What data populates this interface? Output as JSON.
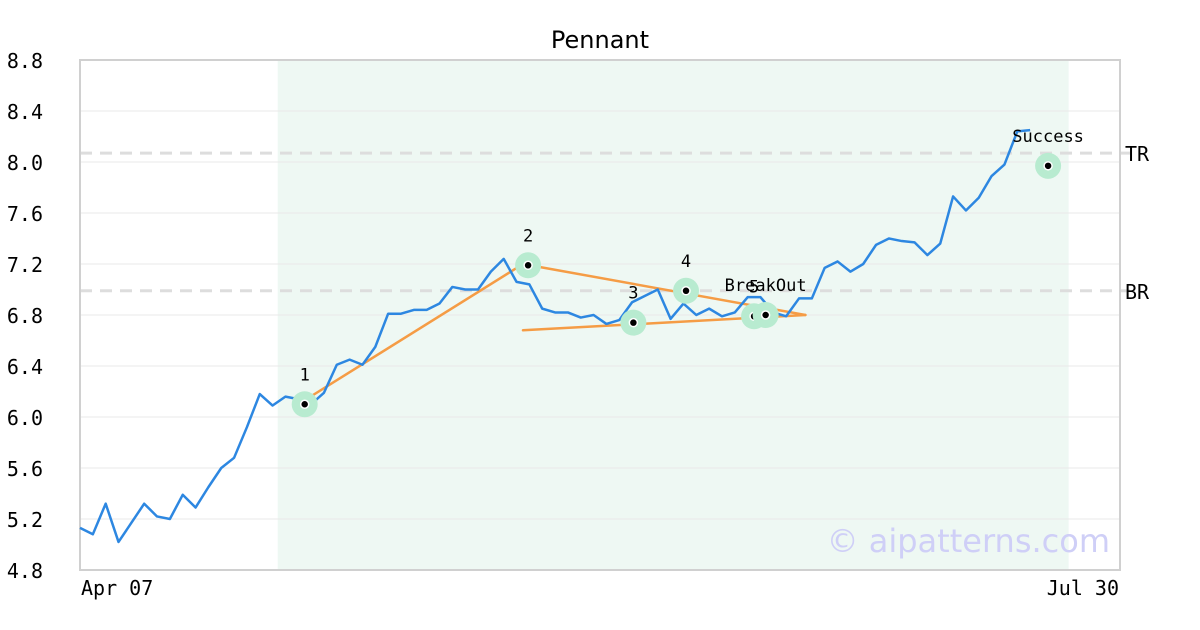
{
  "chart_data": {
    "type": "line",
    "title": "Pennant",
    "xlabel": "",
    "ylabel": "",
    "x_tick_labels": [
      "Apr 07",
      "Jul 30"
    ],
    "x_range": [
      0,
      81
    ],
    "ylim": [
      4.8,
      8.8
    ],
    "y_ticks": [
      "4.8",
      "5.2",
      "5.6",
      "6.0",
      "6.4",
      "6.8",
      "7.2",
      "7.6",
      "8.0",
      "8.4",
      "8.8"
    ],
    "grid": true,
    "pattern_zone_x": [
      15.4,
      77.0
    ],
    "series": [
      {
        "values": [
          5.13,
          5.08,
          5.32,
          5.02,
          5.17,
          5.32,
          5.22,
          5.2,
          5.39,
          5.29,
          5.45,
          5.6,
          5.68,
          5.92,
          6.18,
          6.09,
          6.16,
          6.14,
          6.1,
          6.19,
          6.41,
          6.45,
          6.41,
          6.55,
          6.81,
          6.81,
          6.84,
          6.84,
          6.89,
          7.02,
          7.0,
          7.0,
          7.14,
          7.24,
          7.06,
          7.04,
          6.85,
          6.82,
          6.82,
          6.78,
          6.8,
          6.73,
          6.76,
          6.9,
          6.95,
          7.0,
          6.77,
          6.89,
          6.8,
          6.85,
          6.79,
          6.82,
          6.94,
          6.94,
          6.82,
          6.79,
          6.93,
          6.93,
          7.17,
          7.22,
          7.14,
          7.2,
          7.35,
          7.4,
          7.38,
          7.37,
          7.27,
          7.36,
          7.73,
          7.62,
          7.72,
          7.89,
          7.98,
          8.24,
          8.25
        ]
      }
    ],
    "reference_lines": [
      {
        "label": "TR",
        "y": 8.07
      },
      {
        "label": "BR",
        "y": 6.99
      }
    ],
    "trend_lines": [
      {
        "from": [
          17.0,
          6.1
        ],
        "to": [
          34.5,
          7.2
        ]
      },
      {
        "from": [
          34.5,
          7.2
        ],
        "to": [
          56.5,
          6.8
        ]
      },
      {
        "from": [
          34.5,
          6.68
        ],
        "to": [
          56.5,
          6.8
        ]
      }
    ],
    "points": [
      {
        "label": "1",
        "x": 17.5,
        "y": 6.1
      },
      {
        "label": "2",
        "x": 34.9,
        "y": 7.19
      },
      {
        "label": "3",
        "x": 43.1,
        "y": 6.74
      },
      {
        "label": "4",
        "x": 47.2,
        "y": 6.99
      },
      {
        "label": "5",
        "x": 52.5,
        "y": 6.79
      },
      {
        "label": "BreakOut",
        "x": 53.4,
        "y": 6.8
      },
      {
        "label": "Success",
        "x": 75.4,
        "y": 7.97
      }
    ],
    "colors": {
      "price_line": "#2d87e1",
      "trend_line": "#f59c45",
      "point_halo": "#b8ebd0",
      "zone_fill": "#eef8f3",
      "reference_line": "#dddddd",
      "grid": "#e9e9e9",
      "frame": "#d0d0d0"
    }
  },
  "watermark": "© aipatterns.com"
}
